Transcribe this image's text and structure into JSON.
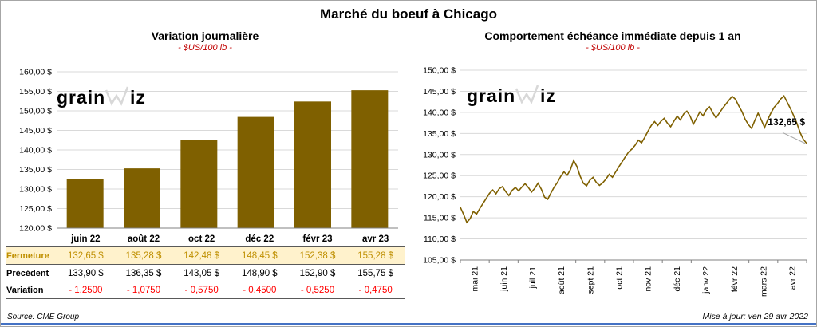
{
  "page": {
    "title": "Marché du boeuf à Chicago",
    "source_note": "Source: CME Group",
    "update_note": "Mise à jour: ven 29 avr 2022",
    "watermark": {
      "part1": "grain",
      "part2": "iz"
    }
  },
  "colors": {
    "series": "#7F6000",
    "grid": "#D9D9D9",
    "axis": "#808080",
    "subtitle": "#C00000",
    "highlight_bg": "#FFF2CC",
    "highlight_text": "#BF8F00",
    "negative_text": "#FF0000",
    "accent_bar": "#4472C4",
    "watermark": "#D8D8D8",
    "annotation_leader": "#A6A6A6"
  },
  "chart_data": [
    {
      "type": "bar",
      "title": "Variation journalière",
      "subtitle": "- $US/100 lb -",
      "categories": [
        "juin 22",
        "août 22",
        "oct 22",
        "déc 22",
        "févr 23",
        "avr 23"
      ],
      "values": [
        132.65,
        135.28,
        142.48,
        148.45,
        152.38,
        155.28
      ],
      "ylim": [
        120,
        160
      ],
      "yticks": {
        "values": [
          120,
          125,
          130,
          135,
          140,
          145,
          150,
          155,
          160
        ],
        "labels": [
          "120,00 $",
          "125,00 $",
          "130,00 $",
          "135,00 $",
          "140,00 $",
          "145,00 $",
          "150,00 $",
          "155,00 $",
          "160,00 $"
        ]
      },
      "grid": true,
      "legend": false
    },
    {
      "type": "line",
      "title": "Comportement échéance immédiate depuis 1 an",
      "subtitle": "- $US/100 lb -",
      "x_labels": [
        "mai 21",
        "juin 21",
        "juil 21",
        "août 21",
        "sept 21",
        "oct 21",
        "nov 21",
        "déc 21",
        "janv 22",
        "févr 22",
        "mars 22",
        "avr 22"
      ],
      "ylim": [
        105,
        150
      ],
      "yticks": {
        "values": [
          105,
          110,
          115,
          120,
          125,
          130,
          135,
          140,
          145,
          150
        ],
        "labels": [
          "105,00 $",
          "110,00 $",
          "115,00 $",
          "120,00 $",
          "125,00 $",
          "130,00 $",
          "135,00 $",
          "140,00 $",
          "145,00 $",
          "150,00 $"
        ]
      },
      "values": [
        117.5,
        115.8,
        113.9,
        114.8,
        116.5,
        115.9,
        117.2,
        118.4,
        119.6,
        120.8,
        121.6,
        120.7,
        121.9,
        122.4,
        121.2,
        120.3,
        121.5,
        122.2,
        121.4,
        122.3,
        123.1,
        122.2,
        121.1,
        122.0,
        123.2,
        121.8,
        119.9,
        119.4,
        120.9,
        122.3,
        123.4,
        124.8,
        125.9,
        125.1,
        126.4,
        128.6,
        127.2,
        124.9,
        123.2,
        122.6,
        123.9,
        124.6,
        123.4,
        122.7,
        123.3,
        124.2,
        125.3,
        124.6,
        125.9,
        127.1,
        128.3,
        129.5,
        130.6,
        131.3,
        132.2,
        133.4,
        132.8,
        134.1,
        135.6,
        136.9,
        137.8,
        136.9,
        137.9,
        138.6,
        137.4,
        136.6,
        137.9,
        139.1,
        138.2,
        139.6,
        140.3,
        139.1,
        137.2,
        138.6,
        140.1,
        139.2,
        140.6,
        141.3,
        139.9,
        138.7,
        139.8,
        140.9,
        141.9,
        142.9,
        143.8,
        143.1,
        141.6,
        140.2,
        138.4,
        137.1,
        136.2,
        138.1,
        139.8,
        138.2,
        136.4,
        138.3,
        139.9,
        141.2,
        142.1,
        143.2,
        143.9,
        142.4,
        140.9,
        139.2,
        137.4,
        135.2,
        133.6,
        132.65
      ],
      "annotation": {
        "label": "132,65 $",
        "value": 132.65
      },
      "grid": true,
      "legend": false
    }
  ],
  "table": {
    "columns": [
      "juin 22",
      "août 22",
      "oct 22",
      "déc 22",
      "févr 23",
      "avr 23"
    ],
    "rows": [
      {
        "label": "Fermeture",
        "style": "highlight",
        "values": [
          "132,65 $",
          "135,28 $",
          "142,48 $",
          "148,45 $",
          "152,38 $",
          "155,28 $"
        ]
      },
      {
        "label": "Précédent",
        "style": "normal",
        "values": [
          "133,90 $",
          "136,35 $",
          "143,05 $",
          "148,90 $",
          "152,90 $",
          "155,75 $"
        ]
      },
      {
        "label": "Variation",
        "style": "negative",
        "values": [
          "- 1,2500",
          "- 1,0750",
          "- 0,5750",
          "- 0,4500",
          "- 0,5250",
          "- 0,4750"
        ]
      }
    ]
  }
}
